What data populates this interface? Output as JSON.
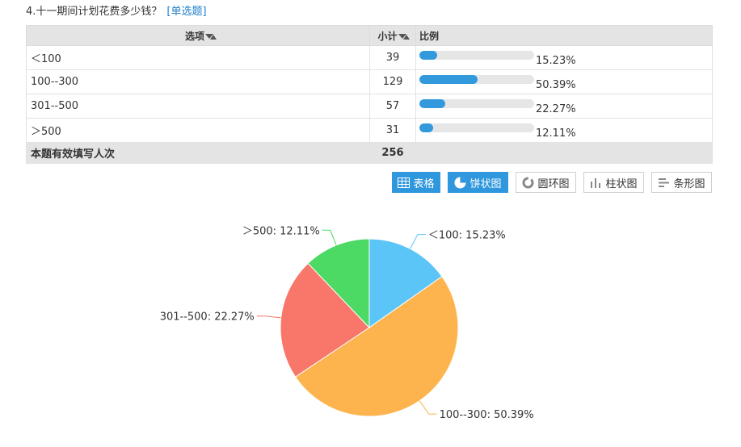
{
  "question": {
    "title": "4.十一期间计划花费多少钱？",
    "type": "[单选题]"
  },
  "table": {
    "headers": {
      "option": "选项",
      "count": "小计",
      "ratio": "比例"
    },
    "rows": [
      {
        "option": "＜100",
        "count": "39",
        "percent_label": "15.23%",
        "percent": 15.23
      },
      {
        "option": "100--300",
        "count": "129",
        "percent_label": "50.39%",
        "percent": 50.39
      },
      {
        "option": "301--500",
        "count": "57",
        "percent_label": "22.27%",
        "percent": 22.27
      },
      {
        "option": "＞500",
        "count": "31",
        "percent_label": "12.11%",
        "percent": 12.11
      }
    ],
    "total": {
      "label": "本题有效填写人次",
      "count": "256"
    }
  },
  "toolbar": {
    "buttons": [
      {
        "label": "表格",
        "icon": "table-icon",
        "active": true
      },
      {
        "label": "饼状图",
        "icon": "pie-chart-icon",
        "active": true
      },
      {
        "label": "圆环图",
        "icon": "ring-chart-icon",
        "active": false
      },
      {
        "label": "柱状图",
        "icon": "bar-chart-icon",
        "active": false
      },
      {
        "label": "条形图",
        "icon": "horizontal-bar-chart-icon",
        "active": false
      }
    ]
  },
  "chart_data": {
    "type": "pie",
    "categories": [
      "＜100",
      "100--300",
      "301--500",
      "＞500"
    ],
    "values": [
      15.23,
      50.39,
      22.27,
      12.11
    ],
    "labels": [
      "＜100: 15.23%",
      "100--300: 50.39%",
      "301--500: 22.27%",
      "＞500: 12.11%"
    ],
    "colors": [
      "#5bc5f7",
      "#fdb44e",
      "#f8776a",
      "#4cd964"
    ]
  }
}
